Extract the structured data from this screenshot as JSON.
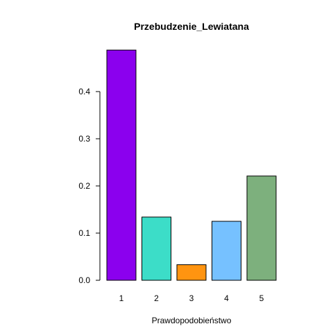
{
  "chart_data": {
    "type": "bar",
    "title": "Przebudzenie_Lewiatana",
    "xlabel": "Prawdopodobieństwo",
    "ylabel": "",
    "categories": [
      "1",
      "2",
      "3",
      "4",
      "5"
    ],
    "values": [
      0.488,
      0.134,
      0.033,
      0.125,
      0.221
    ],
    "colors": [
      "#8B00EE",
      "#3CDDC8",
      "#FF9410",
      "#76C1FF",
      "#7DB07D"
    ],
    "ylim": [
      0,
      0.5
    ],
    "yticks": [
      0.0,
      0.1,
      0.2,
      0.3,
      0.4
    ],
    "ytick_labels": [
      "0.0",
      "0.1",
      "0.2",
      "0.3",
      "0.4"
    ],
    "grid": false,
    "legend": "none"
  }
}
